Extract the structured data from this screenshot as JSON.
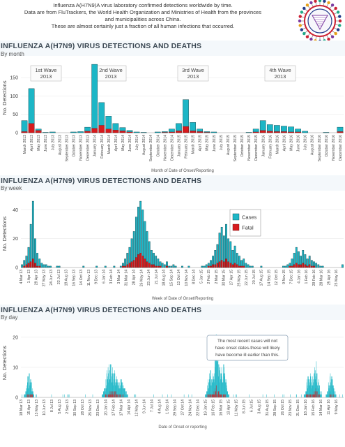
{
  "header": {
    "line1": "Influenza A(H7N9)A virus laboratory confirmed detections worldwide by time.",
    "line2": "Data are from FluTrackers, the World Health Organization and Ministries of Health from the provinces",
    "line3": "and municipalities across China.",
    "line4": "These are almost certainly just a fraction of all human infections that occurred."
  },
  "colors": {
    "cases": "#1cb6c6",
    "fatal": "#d7191c",
    "band": "#f4f8fb",
    "title": "#3d4a55"
  },
  "panels": [
    {
      "title": "INFLUENZA A(H7N9) VIRUS DETECTIONS AND DEATHS",
      "subtitle": "By month"
    },
    {
      "title": "INFLUENZA A(H7N9) VIRUS DETECTIONS AND DEATHS",
      "subtitle": "By week"
    },
    {
      "title": "INFLUENZA A(H7N9) VIRUS DETECTIONS AND DEATHS",
      "subtitle": "By day"
    }
  ],
  "chart_data": [
    {
      "type": "bar",
      "ylabel": "No. Detections",
      "xlabel": "Month of Date of Onset/Reporting",
      "yticks": [
        0,
        50,
        100,
        150
      ],
      "ylim": [
        0,
        190
      ],
      "waves": [
        "1st Wave\n2013",
        "2nd Wave\n2013",
        "3rd Wave\n2013",
        "4th Wave\n2013"
      ],
      "categories": [
        "March 2013",
        "April 2013",
        "May 2013",
        "June 2013",
        "July 2013",
        "August 2013",
        "September 2013",
        "October 2013",
        "November 2013",
        "December 2013",
        "January 2014",
        "February 2014",
        "March 2014",
        "April 2014",
        "May 2014",
        "June 2014",
        "July 2014",
        "August 2014",
        "September 2014",
        "October 2014",
        "November 2014",
        "December 2014",
        "January 2015",
        "February 2015",
        "March 2015",
        "April 2015",
        "May 2015",
        "June 2015",
        "July 2015",
        "August 2015",
        "September 2015",
        "October 2015",
        "November 2015",
        "December 2015",
        "January 2016",
        "February 2016",
        "March 2016",
        "April 2016",
        "May 2016",
        "June 2016",
        "July 2016",
        "August 2016",
        "September 2016",
        "October 2016",
        "November 2016",
        "December 2016"
      ],
      "series": [
        {
          "name": "Cases",
          "values": [
            33,
            120,
            10,
            1,
            2,
            0,
            0,
            2,
            3,
            15,
            186,
            82,
            45,
            25,
            14,
            6,
            2,
            1,
            0,
            2,
            3,
            10,
            25,
            90,
            28,
            10,
            3,
            2,
            0,
            0,
            0,
            0,
            1,
            10,
            33,
            22,
            20,
            18,
            16,
            10,
            4,
            0,
            0,
            1,
            0,
            15
          ]
        },
        {
          "name": "Fatal",
          "values": [
            3,
            25,
            6,
            0,
            0,
            0,
            0,
            0,
            0,
            4,
            12,
            20,
            10,
            7,
            5,
            2,
            0,
            0,
            0,
            0,
            1,
            2,
            5,
            17,
            5,
            3,
            1,
            0,
            0,
            0,
            0,
            0,
            0,
            2,
            6,
            4,
            3,
            3,
            2,
            2,
            0,
            0,
            0,
            0,
            0,
            3
          ]
        }
      ]
    },
    {
      "type": "bar",
      "ylabel": "No. Detections",
      "xlabel": "Week of Date of Onset/Reporting",
      "yticks": [
        0,
        20,
        40
      ],
      "ylim": [
        0,
        47
      ],
      "legend": [
        "Cases",
        "Fatal"
      ],
      "tick_labels": [
        "4 Mar 13",
        "1 Apr 13",
        "29 Apr 13",
        "27 May 13",
        "24 Jun 13",
        "22 Jul 13",
        "19 Aug 13",
        "16 Sep 13",
        "14 Oct 13",
        "11 Nov 13",
        "9 Dec 13",
        "6 Jan 14",
        "3 Feb 14",
        "3 Mar 14",
        "31 Mar 14",
        "28 Apr 14",
        "26 May 14",
        "23 Jun 14",
        "21 Jul 14",
        "18 Aug 14",
        "15 Sep 14",
        "13 Oct 14",
        "10 Nov 14",
        "8 Dec 14",
        "5 Jan 15",
        "2 Feb 15",
        "2 Mar 15",
        "30 Mar 15",
        "27 Apr 15",
        "25 May 15",
        "22 Jun 15",
        "20 Jul 15",
        "17 Aug 15",
        "14 Sep 15",
        "12 Oct 15",
        "9 Nov 15",
        "7 Dec 15",
        "4 Jan 16",
        "1 Feb 16",
        "29 Feb 16",
        "28 Mar 16",
        "25 Apr 16",
        "23 May 16"
      ],
      "series": [
        {
          "name": "Cases",
          "values": [
            2,
            5,
            8,
            14,
            30,
            46,
            20,
            10,
            6,
            3,
            2,
            2,
            1,
            1,
            0,
            0,
            1,
            1,
            0,
            0,
            0,
            0,
            0,
            0,
            0,
            0,
            0,
            0,
            1,
            0,
            0,
            0,
            0,
            0,
            1,
            0,
            0,
            0,
            1,
            0,
            0,
            0,
            1,
            0,
            0,
            1,
            3,
            6,
            10,
            14,
            20,
            25,
            35,
            42,
            46,
            40,
            32,
            25,
            18,
            12,
            10,
            8,
            6,
            4,
            3,
            2,
            4,
            1,
            1,
            2,
            1,
            0,
            0,
            1,
            0,
            0,
            1,
            0,
            0,
            0,
            0,
            0,
            1,
            1,
            2,
            3,
            5,
            8,
            12,
            16,
            24,
            28,
            22,
            30,
            20,
            18,
            12,
            15,
            10,
            8,
            5,
            6,
            3,
            2,
            1,
            1,
            0,
            0,
            0,
            1,
            0,
            0,
            0,
            0,
            0,
            0,
            0,
            0,
            0,
            1,
            1,
            2,
            3,
            6,
            10,
            14,
            11,
            8,
            12,
            9,
            6,
            8,
            5,
            4,
            3,
            2,
            1,
            1,
            0,
            0,
            0,
            0,
            0,
            0,
            0,
            0,
            2
          ]
        },
        {
          "name": "Fatal",
          "values": [
            0,
            1,
            2,
            3,
            4,
            6,
            3,
            1,
            1,
            0,
            0,
            0,
            0,
            0,
            0,
            0,
            0,
            0,
            0,
            0,
            0,
            0,
            0,
            0,
            0,
            0,
            0,
            0,
            0,
            0,
            0,
            0,
            0,
            0,
            0,
            0,
            0,
            0,
            0,
            0,
            0,
            0,
            0,
            0,
            0,
            0,
            1,
            1,
            2,
            3,
            4,
            5,
            7,
            9,
            10,
            8,
            6,
            4,
            3,
            2,
            2,
            1,
            1,
            1,
            0,
            0,
            1,
            0,
            0,
            0,
            0,
            0,
            0,
            0,
            0,
            0,
            0,
            0,
            0,
            0,
            0,
            0,
            0,
            0,
            0,
            1,
            1,
            2,
            2,
            3,
            4,
            5,
            4,
            6,
            4,
            3,
            2,
            3,
            2,
            1,
            1,
            1,
            0,
            0,
            0,
            0,
            0,
            0,
            0,
            0,
            0,
            0,
            0,
            0,
            0,
            0,
            0,
            0,
            0,
            0,
            0,
            0,
            1,
            1,
            2,
            3,
            2,
            2,
            3,
            2,
            1,
            2,
            1,
            1,
            0,
            0,
            0,
            0,
            0,
            0,
            0,
            0,
            0,
            0,
            0,
            0,
            0
          ]
        }
      ]
    },
    {
      "type": "bar",
      "ylabel": "No. Detections",
      "xlabel": "Date of Onset or reporting",
      "yticks": [
        0,
        10,
        20
      ],
      "ylim": [
        0,
        23
      ],
      "annotation": "The most recent cases will not have onset dates-these will likely have become ill earlier than this.",
      "tick_labels": [
        "18 Mar 13",
        "15 Apr 13",
        "13 May 13",
        "10 Jun 13",
        "8 Jul 13",
        "5 Aug 13",
        "2 Sep 13",
        "30 Sep 13",
        "28 Oct 13",
        "25 Nov 13",
        "23 Dec 13",
        "20 Jan 14",
        "17 Feb 14",
        "17 Mar 14",
        "14 Apr 14",
        "12 May 14",
        "9 Jun 14",
        "7 Jul 14",
        "4 Aug 14",
        "1 Sep 14",
        "29 Sep 14",
        "27 Oct 14",
        "24 Nov 14",
        "22 Dec 14",
        "19 Jan 15",
        "16 Feb 15",
        "16 Mar 15",
        "13 Apr 15",
        "11 May 15",
        "8 Jun 15",
        "6 Jul 15",
        "3 Aug 15",
        "31 Aug 15",
        "28 Sep 15",
        "26 Oct 15",
        "23 Nov 15",
        "21 Dec 15",
        "18 Jan 16",
        "15 Feb 16",
        "14 Mar 16",
        "11 Apr 16",
        "9 May 16"
      ],
      "series": [
        {
          "name": "Cases",
          "approx_peaks": {
            "Apr 2013": 9,
            "Jan 2014": 11,
            "Feb 2014": 10,
            "Jan 2015": 9,
            "Feb 2015": 21,
            "Jan 2016": 9,
            "Feb 2016": 12,
            "May 2016": 8
          }
        },
        {
          "name": "Fatal",
          "approx_peaks": {
            "Apr 2013": 2,
            "Feb 2014": 3,
            "Feb 2015": 5,
            "Feb 2016": 4
          }
        }
      ]
    }
  ]
}
